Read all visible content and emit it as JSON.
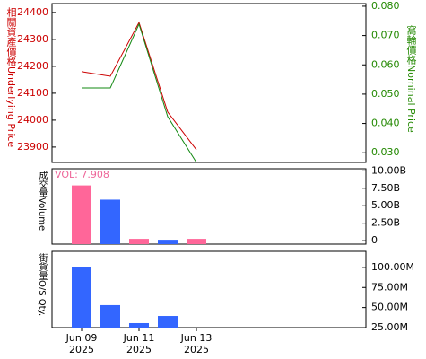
{
  "chart_data": [
    {
      "type": "line",
      "ylabel": "相關資產價格Underlying Price",
      "y2label": "窩輪價格Nominal Price",
      "ylim": [
        23843,
        24433
      ],
      "yticks": [
        23900,
        24000,
        24100,
        24200,
        24300,
        24400
      ],
      "y2lim": [
        0.0267,
        0.0809
      ],
      "y2ticks": [
        {
          "value": 0.03,
          "label": "0.030"
        },
        {
          "value": 0.04,
          "label": "0.040"
        },
        {
          "value": 0.05,
          "label": "0.050"
        },
        {
          "value": 0.06,
          "label": "0.060"
        },
        {
          "value": 0.07,
          "label": "0.070"
        },
        {
          "value": 0.08,
          "label": "0.080"
        }
      ],
      "ylabel_color": "#cc0000",
      "y2label_color": "#228800",
      "series": [
        {
          "name": "Underlying Price",
          "color": "#cc0000",
          "values": [
            24180,
            24163,
            24363,
            24030,
            23890
          ]
        },
        {
          "name": "Nominal Price",
          "color": "#118811",
          "axis": "y2",
          "values": [
            0.0521,
            0.0521,
            0.0739,
            0.0423,
            0.0267
          ]
        }
      ]
    },
    {
      "type": "bar",
      "ylabel": "成交量Volume",
      "annotation": "VOL: 7.908",
      "annotation_color": "#ee6699",
      "ylim": [
        -0.5,
        10.3
      ],
      "yticks": [
        0,
        {
          "value": 2.5,
          "label": "2.50B"
        },
        {
          "value": 5,
          "label": "5.00B"
        },
        {
          "value": 7.5,
          "label": "7.50B"
        },
        {
          "value": 10,
          "label": "10.00B"
        }
      ],
      "values": [
        7.908,
        5.87,
        0.26,
        0.13,
        0.26
      ],
      "colors": [
        "#ff6699",
        "#3366ff",
        "#ff6699",
        "#3366ff",
        "#ff6699"
      ]
    },
    {
      "type": "bar",
      "ylabel": "街貨量O/S Qty.",
      "ylim": [
        25,
        120
      ],
      "yticks": [
        {
          "value": 25,
          "label": "25.00M"
        },
        {
          "value": 50,
          "label": "50.00M"
        },
        {
          "value": 75,
          "label": "75.00M"
        },
        {
          "value": 100,
          "label": "100.00M"
        }
      ],
      "values": [
        100,
        53,
        30.6,
        39.5,
        null
      ],
      "colors": [
        "#3366ff",
        "#3366ff",
        "#3366ff",
        "#3366ff",
        "#3366ff"
      ],
      "categories": [
        "Jun 09",
        null,
        "Jun 11",
        null,
        "Jun 13"
      ],
      "category_years": [
        "2025",
        null,
        "2025",
        null,
        "2025"
      ]
    }
  ]
}
